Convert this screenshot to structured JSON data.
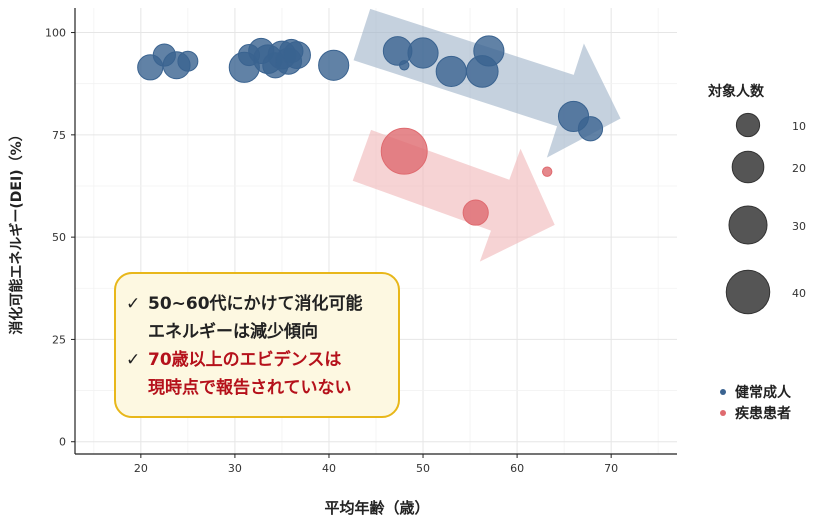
{
  "chart_data": {
    "type": "scatter",
    "xlabel": "平均年齢（歳）",
    "ylabel": "消化可能エネルギー(DEI)（%）",
    "xlim": [
      13,
      77
    ],
    "ylim": [
      -3,
      106
    ],
    "x_ticks": [
      20,
      30,
      40,
      50,
      60,
      70
    ],
    "y_ticks": [
      0,
      25,
      50,
      75,
      100
    ],
    "grid": true,
    "legend_placement": "right",
    "size_legend": {
      "title": "対象人数",
      "values": [
        10,
        20,
        30,
        40
      ]
    },
    "series": [
      {
        "name": "健常成人",
        "color": "#3a6390",
        "points": [
          {
            "x": 21.0,
            "y": 91.5,
            "n": 12
          },
          {
            "x": 22.5,
            "y": 94.5,
            "n": 9
          },
          {
            "x": 23.8,
            "y": 92.0,
            "n": 14
          },
          {
            "x": 25.0,
            "y": 93.0,
            "n": 7
          },
          {
            "x": 31.0,
            "y": 91.5,
            "n": 18
          },
          {
            "x": 31.5,
            "y": 94.5,
            "n": 8
          },
          {
            "x": 32.8,
            "y": 95.5,
            "n": 12
          },
          {
            "x": 33.5,
            "y": 93.5,
            "n": 16
          },
          {
            "x": 34.3,
            "y": 92.0,
            "n": 12
          },
          {
            "x": 35.0,
            "y": 94.5,
            "n": 15
          },
          {
            "x": 35.7,
            "y": 93.0,
            "n": 13
          },
          {
            "x": 36.0,
            "y": 95.5,
            "n": 10
          },
          {
            "x": 36.6,
            "y": 94.5,
            "n": 14
          },
          {
            "x": 40.5,
            "y": 92.0,
            "n": 18
          },
          {
            "x": 47.3,
            "y": 95.5,
            "n": 16
          },
          {
            "x": 48.0,
            "y": 92.0,
            "n": 1
          },
          {
            "x": 50.0,
            "y": 95.0,
            "n": 18
          },
          {
            "x": 53.0,
            "y": 90.5,
            "n": 18
          },
          {
            "x": 56.3,
            "y": 90.5,
            "n": 20
          },
          {
            "x": 57.0,
            "y": 95.5,
            "n": 18
          },
          {
            "x": 66.0,
            "y": 79.5,
            "n": 18
          },
          {
            "x": 67.8,
            "y": 76.5,
            "n": 11
          }
        ]
      },
      {
        "name": "疾患患者",
        "color": "#df6a6f",
        "points": [
          {
            "x": 48.0,
            "y": 71.0,
            "n": 45
          },
          {
            "x": 55.6,
            "y": 56.0,
            "n": 12
          },
          {
            "x": 63.2,
            "y": 66.0,
            "n": 1
          }
        ]
      }
    ],
    "annotations": [
      {
        "type": "arrow",
        "color": "#9fb3c8",
        "from": [
          43.5,
          99.5
        ],
        "to": [
          71.0,
          79.0
        ]
      },
      {
        "type": "arrow",
        "color": "#f0b5b8",
        "from": [
          43.5,
          70.0
        ],
        "to": [
          64.0,
          53.0
        ]
      }
    ]
  },
  "note": {
    "check_mark": "✓",
    "line1": "50~60代にかけて消化可能",
    "line2": "エネルギーは減少傾向",
    "line3": "70歳以上のエビデンスは",
    "line4": "現時点で報告されていない"
  }
}
